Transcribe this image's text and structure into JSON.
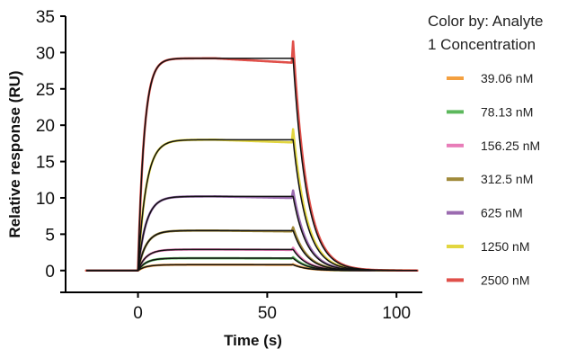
{
  "chart_data": {
    "type": "line",
    "xlabel": "Time (s)",
    "ylabel": "Relative response (RU)",
    "xlim": [
      -28,
      110
    ],
    "ylim": [
      -3,
      35
    ],
    "xticks": [
      0,
      50,
      100
    ],
    "yticks": [
      0,
      5,
      10,
      15,
      20,
      25,
      30,
      35
    ],
    "association_end_s": 60,
    "baseline_start_s": -20,
    "legend": {
      "title_line1": "Color by: Analyte",
      "title_line2": "1 Concentration",
      "position": "right"
    },
    "series": [
      {
        "name": "39.06 nM",
        "color": "#f4a040",
        "plateau_ru": 0.8
      },
      {
        "name": "78.13 nM",
        "color": "#5cb85c",
        "plateau_ru": 1.7
      },
      {
        "name": "156.25 nM",
        "color": "#e87cb8",
        "plateau_ru": 2.9
      },
      {
        "name": "312.5 nM",
        "color": "#a08a3a",
        "plateau_ru": 5.5
      },
      {
        "name": "625 nM",
        "color": "#9b6bb0",
        "plateau_ru": 10.2
      },
      {
        "name": "1250 nM",
        "color": "#e2d640",
        "plateau_ru": 18.0
      },
      {
        "name": "2500 nM",
        "color": "#e0504a",
        "plateau_ru": 29.2
      }
    ]
  }
}
